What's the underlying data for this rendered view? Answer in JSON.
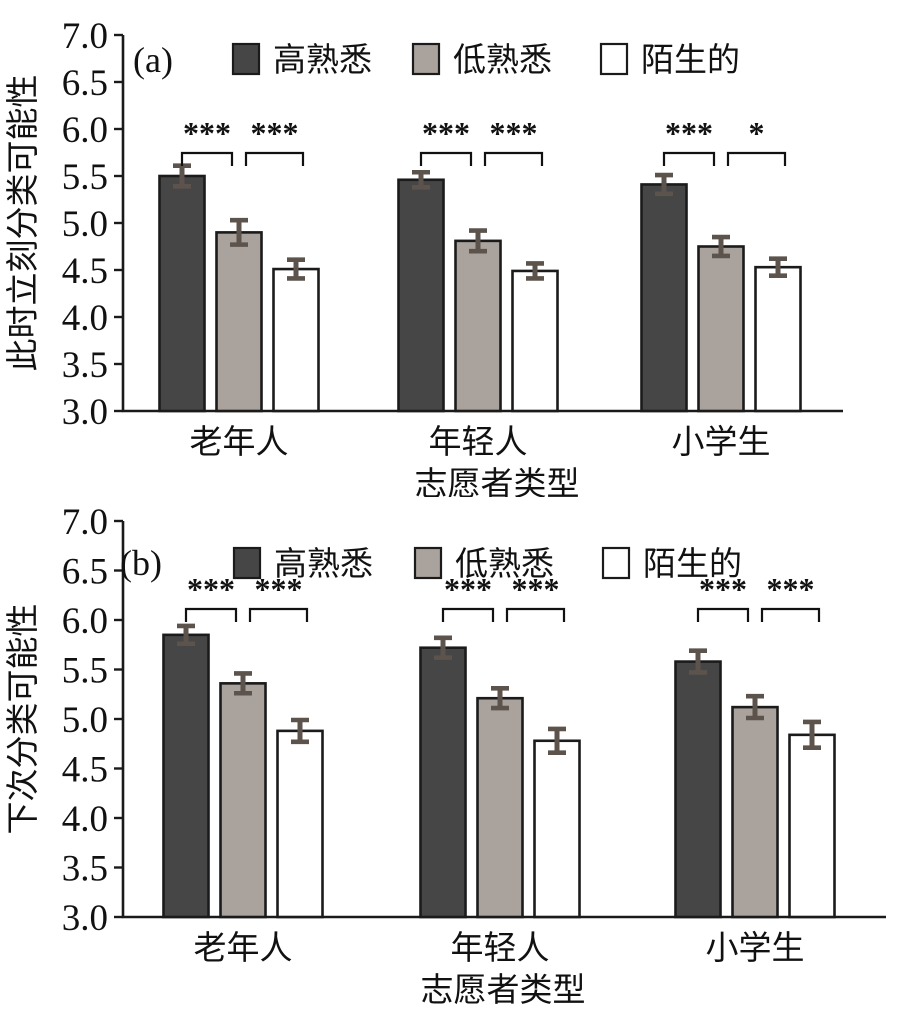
{
  "figure": {
    "xlabel": "志愿者类型",
    "legend_labels": [
      "高熟悉",
      "低熟悉",
      "陌生的"
    ],
    "colors": {
      "high_familiar": "#464646",
      "low_familiar": "#aaa29c",
      "stranger": "#ffffff",
      "bar_border": "#1b1b1b",
      "error_bar": "#5c534c",
      "axis": "#1a1a1a"
    }
  },
  "chart_data": [
    {
      "type": "bar",
      "panel_label": "(a)",
      "title": "",
      "xlabel": "志愿者类型",
      "ylabel": "此时立刻分类可能性",
      "ylim": [
        3.0,
        7.0
      ],
      "ytick_step": 0.5,
      "ytick_labels": [
        "7.0",
        "6.5",
        "6.0",
        "5.5",
        "5.0",
        "4.5",
        "4.0",
        "3.5",
        "3.0"
      ],
      "grid": false,
      "legend_position": "top-inside",
      "categories": [
        "老年人",
        "年轻人",
        "小学生"
      ],
      "category_keys": [
        "elderly",
        "young",
        "pupil"
      ],
      "series": [
        {
          "key": "high-familiar",
          "name": "高熟悉",
          "color": "#464646",
          "values": [
            5.5,
            5.46,
            5.41
          ],
          "errors": [
            0.11,
            0.08,
            0.1
          ]
        },
        {
          "key": "low-familiar",
          "name": "低熟悉",
          "color": "#aaa29c",
          "values": [
            4.9,
            4.81,
            4.75
          ],
          "errors": [
            0.13,
            0.11,
            0.1
          ]
        },
        {
          "key": "stranger",
          "name": "陌生的",
          "color": "#ffffff",
          "values": [
            4.51,
            4.49,
            4.53
          ],
          "errors": [
            0.1,
            0.08,
            0.09
          ]
        }
      ],
      "significance": [
        [
          "***",
          "***"
        ],
        [
          "***",
          "***"
        ],
        [
          "***",
          "*"
        ]
      ]
    },
    {
      "type": "bar",
      "panel_label": "(b)",
      "title": "",
      "xlabel": "志愿者类型",
      "ylabel": "下次分类可能性",
      "ylim": [
        3.0,
        7.0
      ],
      "ytick_step": 0.5,
      "ytick_labels": [
        "7.0",
        "6.5",
        "6.0",
        "5.5",
        "5.0",
        "4.5",
        "4.0",
        "3.5",
        "3.0"
      ],
      "grid": false,
      "legend_position": "top-inside",
      "categories": [
        "老年人",
        "年轻人",
        "小学生"
      ],
      "category_keys": [
        "elderly",
        "young",
        "pupil"
      ],
      "series": [
        {
          "key": "high-familiar",
          "name": "高熟悉",
          "color": "#464646",
          "values": [
            5.85,
            5.72,
            5.58
          ],
          "errors": [
            0.09,
            0.1,
            0.11
          ]
        },
        {
          "key": "low-familiar",
          "name": "低熟悉",
          "color": "#aaa29c",
          "values": [
            5.36,
            5.21,
            5.12
          ],
          "errors": [
            0.1,
            0.1,
            0.11
          ]
        },
        {
          "key": "stranger",
          "name": "陌生的",
          "color": "#ffffff",
          "values": [
            4.88,
            4.78,
            4.84
          ],
          "errors": [
            0.11,
            0.12,
            0.13
          ]
        }
      ],
      "significance": [
        [
          "***",
          "***"
        ],
        [
          "***",
          "***"
        ],
        [
          "***",
          "***"
        ]
      ]
    }
  ]
}
